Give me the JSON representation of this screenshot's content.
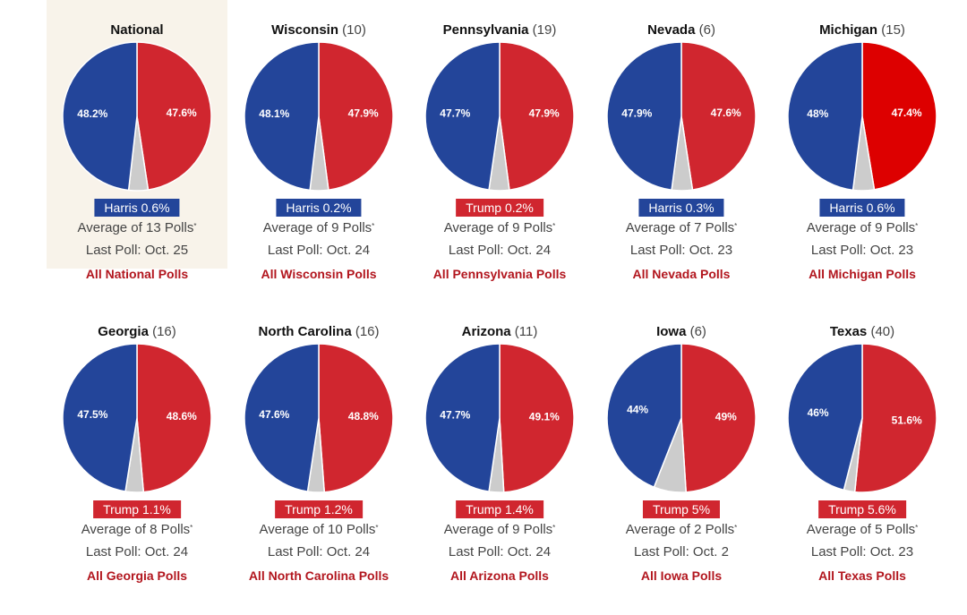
{
  "colors": {
    "harris": "#23459a",
    "trump": "#d0262f",
    "trump_bright": "#dd0000",
    "undecided": "#cccccc",
    "link": "#b2161e"
  },
  "chart_data": {
    "type": "pie",
    "charts": [
      {
        "name": "National",
        "ev": "",
        "harris": 48.2,
        "trump": 47.6,
        "harris_label": "48.2%",
        "trump_label": "47.6%",
        "lead": "Harris 0.6%",
        "leader": "harris",
        "avg": "Average of 13 Polls",
        "last": "Last Poll: Oct. 25",
        "link": "All National Polls",
        "highlight": true
      },
      {
        "name": "Wisconsin",
        "ev": "(10)",
        "harris": 48.1,
        "trump": 47.9,
        "harris_label": "48.1%",
        "trump_label": "47.9%",
        "lead": "Harris 0.2%",
        "leader": "harris",
        "avg": "Average of 9 Polls",
        "last": "Last Poll: Oct. 24",
        "link": "All Wisconsin Polls"
      },
      {
        "name": "Pennsylvania",
        "ev": "(19)",
        "harris": 47.7,
        "trump": 47.9,
        "harris_label": "47.7%",
        "trump_label": "47.9%",
        "lead": "Trump 0.2%",
        "leader": "trump",
        "avg": "Average of 9 Polls",
        "last": "Last Poll: Oct. 24",
        "link": "All Pennsylvania Polls"
      },
      {
        "name": "Nevada",
        "ev": "(6)",
        "harris": 47.9,
        "trump": 47.6,
        "harris_label": "47.9%",
        "trump_label": "47.6%",
        "lead": "Harris 0.3%",
        "leader": "harris",
        "avg": "Average of 7 Polls",
        "last": "Last Poll: Oct. 23",
        "link": "All Nevada Polls"
      },
      {
        "name": "Michigan",
        "ev": "(15)",
        "harris": 48,
        "trump": 47.4,
        "harris_label": "48%",
        "trump_label": "47.4%",
        "lead": "Harris 0.6%",
        "leader": "harris",
        "avg": "Average of 9 Polls",
        "last": "Last Poll: Oct. 23",
        "link": "All Michigan Polls",
        "trump_bright": true
      },
      {
        "name": "Georgia",
        "ev": "(16)",
        "harris": 47.5,
        "trump": 48.6,
        "harris_label": "47.5%",
        "trump_label": "48.6%",
        "lead": "Trump 1.1%",
        "leader": "trump",
        "avg": "Average of 8 Polls",
        "last": "Last Poll: Oct. 24",
        "link": "All Georgia Polls"
      },
      {
        "name": "North Carolina",
        "ev": "(16)",
        "harris": 47.6,
        "trump": 48.8,
        "harris_label": "47.6%",
        "trump_label": "48.8%",
        "lead": "Trump 1.2%",
        "leader": "trump",
        "avg": "Average of 10 Polls",
        "last": "Last Poll: Oct. 24",
        "link": "All North Carolina Polls"
      },
      {
        "name": "Arizona",
        "ev": "(11)",
        "harris": 47.7,
        "trump": 49.1,
        "harris_label": "47.7%",
        "trump_label": "49.1%",
        "lead": "Trump 1.4%",
        "leader": "trump",
        "avg": "Average of 9 Polls",
        "last": "Last Poll: Oct. 24",
        "link": "All Arizona Polls"
      },
      {
        "name": "Iowa",
        "ev": "(6)",
        "harris": 44,
        "trump": 49,
        "harris_label": "44%",
        "trump_label": "49%",
        "lead": "Trump 5%",
        "leader": "trump",
        "avg": "Average of 2 Polls",
        "last": "Last Poll: Oct. 2",
        "link": "All Iowa Polls"
      },
      {
        "name": "Texas",
        "ev": "(40)",
        "harris": 46,
        "trump": 51.6,
        "harris_label": "46%",
        "trump_label": "51.6%",
        "lead": "Trump 5.6%",
        "leader": "trump",
        "avg": "Average of 5 Polls",
        "last": "Last Poll: Oct. 23",
        "link": "All Texas Polls"
      }
    ]
  },
  "footnote_mark": "*"
}
